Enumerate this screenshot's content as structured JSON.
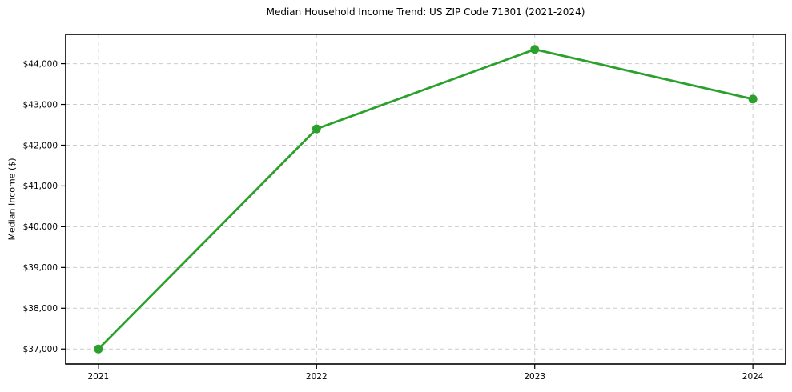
{
  "chart_data": {
    "type": "line",
    "title": "Median Household Income Trend: US ZIP Code 71301 (2021-2024)",
    "xlabel": "",
    "ylabel": "Median Income ($)",
    "x": [
      2021,
      2022,
      2023,
      2024
    ],
    "series": [
      {
        "name": "Median Household Income",
        "values": [
          37000,
          42400,
          44350,
          43130
        ],
        "color": "#2ca02c",
        "marker": "circle",
        "marker_radius": 5.5,
        "line_width": 2.8
      }
    ],
    "x_ticks": [
      {
        "value": 2021,
        "label": "2021"
      },
      {
        "value": 2022,
        "label": "2022"
      },
      {
        "value": 2023,
        "label": "2023"
      },
      {
        "value": 2024,
        "label": "2024"
      }
    ],
    "y_ticks": [
      {
        "value": 37000,
        "label": "$37,000"
      },
      {
        "value": 38000,
        "label": "$38,000"
      },
      {
        "value": 39000,
        "label": "$39,000"
      },
      {
        "value": 40000,
        "label": "$40,000"
      },
      {
        "value": 41000,
        "label": "$41,000"
      },
      {
        "value": 42000,
        "label": "$42,000"
      },
      {
        "value": 43000,
        "label": "$43,000"
      },
      {
        "value": 44000,
        "label": "$44,000"
      }
    ],
    "xlim": [
      2020.85,
      2024.15
    ],
    "ylim": [
      36632,
      44718
    ],
    "grid": {
      "show": true,
      "style": "dashed",
      "color": "#cccccc"
    },
    "spine_color": "#000000",
    "legend": "none",
    "background": "#ffffff"
  }
}
